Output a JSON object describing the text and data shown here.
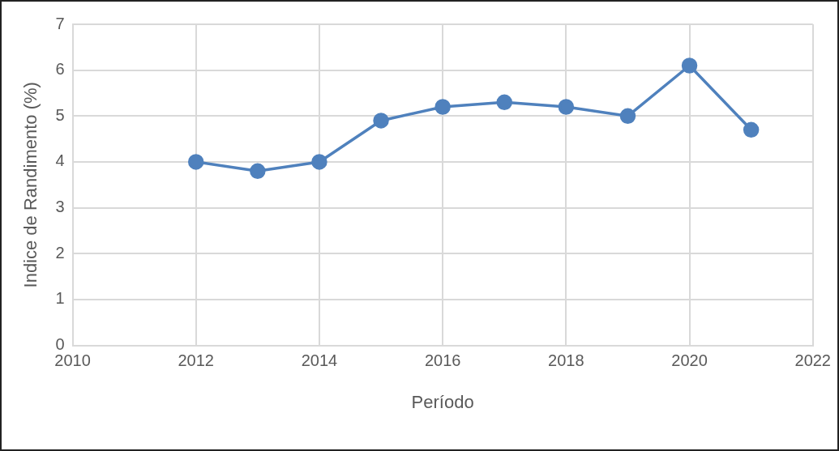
{
  "chart_data": {
    "type": "line",
    "xlabel": "Período",
    "ylabel": "Indice de Randimento (%)",
    "x": [
      2012,
      2013,
      2014,
      2015,
      2016,
      2017,
      2018,
      2019,
      2020,
      2021
    ],
    "series": [
      {
        "color": "#4f81bd",
        "values": [
          4.0,
          3.8,
          4.0,
          4.9,
          5.2,
          5.3,
          5.2,
          5.0,
          6.1,
          4.7
        ]
      }
    ],
    "xlim": [
      2010,
      2022
    ],
    "xticks": [
      2010,
      2012,
      2014,
      2016,
      2018,
      2020,
      2022
    ],
    "ylim": [
      0,
      7
    ],
    "yticks": [
      0,
      1,
      2,
      3,
      4,
      5,
      6,
      7
    ],
    "grid": true,
    "legend": false,
    "marker": "circle",
    "line_style": "solid"
  }
}
